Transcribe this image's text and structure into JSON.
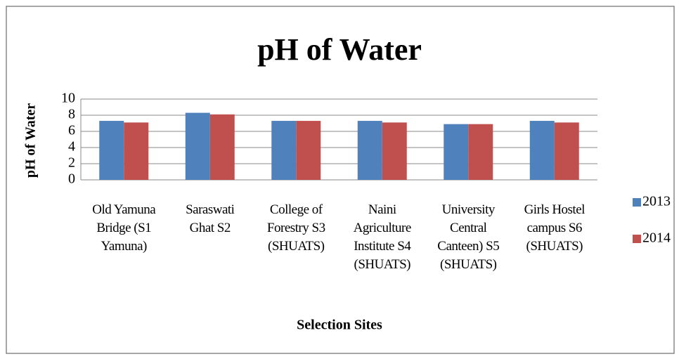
{
  "chart_data": {
    "type": "bar",
    "title": "pH of Water",
    "xlabel": "Selection Sites",
    "ylabel": "pH of Water",
    "categories": [
      "Old Yamuna\nBridge (S1\nYamuna)",
      "Saraswati\nGhat S2",
      "College of\nForestry S3\n(SHUATS)",
      "Naini\nAgriculture\nInstitute S4\n(SHUATS)",
      "University\nCentral\nCanteen) S5\n(SHUATS)",
      "Girls Hostel\ncampus S6\n(SHUATS)"
    ],
    "series": [
      {
        "name": "2013",
        "color": "#4f81bd",
        "values": [
          7.3,
          8.3,
          7.3,
          7.3,
          6.9,
          7.3
        ]
      },
      {
        "name": "2014",
        "color": "#c0504d",
        "values": [
          7.1,
          8.1,
          7.3,
          7.1,
          6.9,
          7.1
        ]
      }
    ],
    "ylim": [
      0,
      10
    ],
    "yticks": [
      0,
      2,
      4,
      6,
      8,
      10
    ],
    "grid": true,
    "legend": "right"
  }
}
